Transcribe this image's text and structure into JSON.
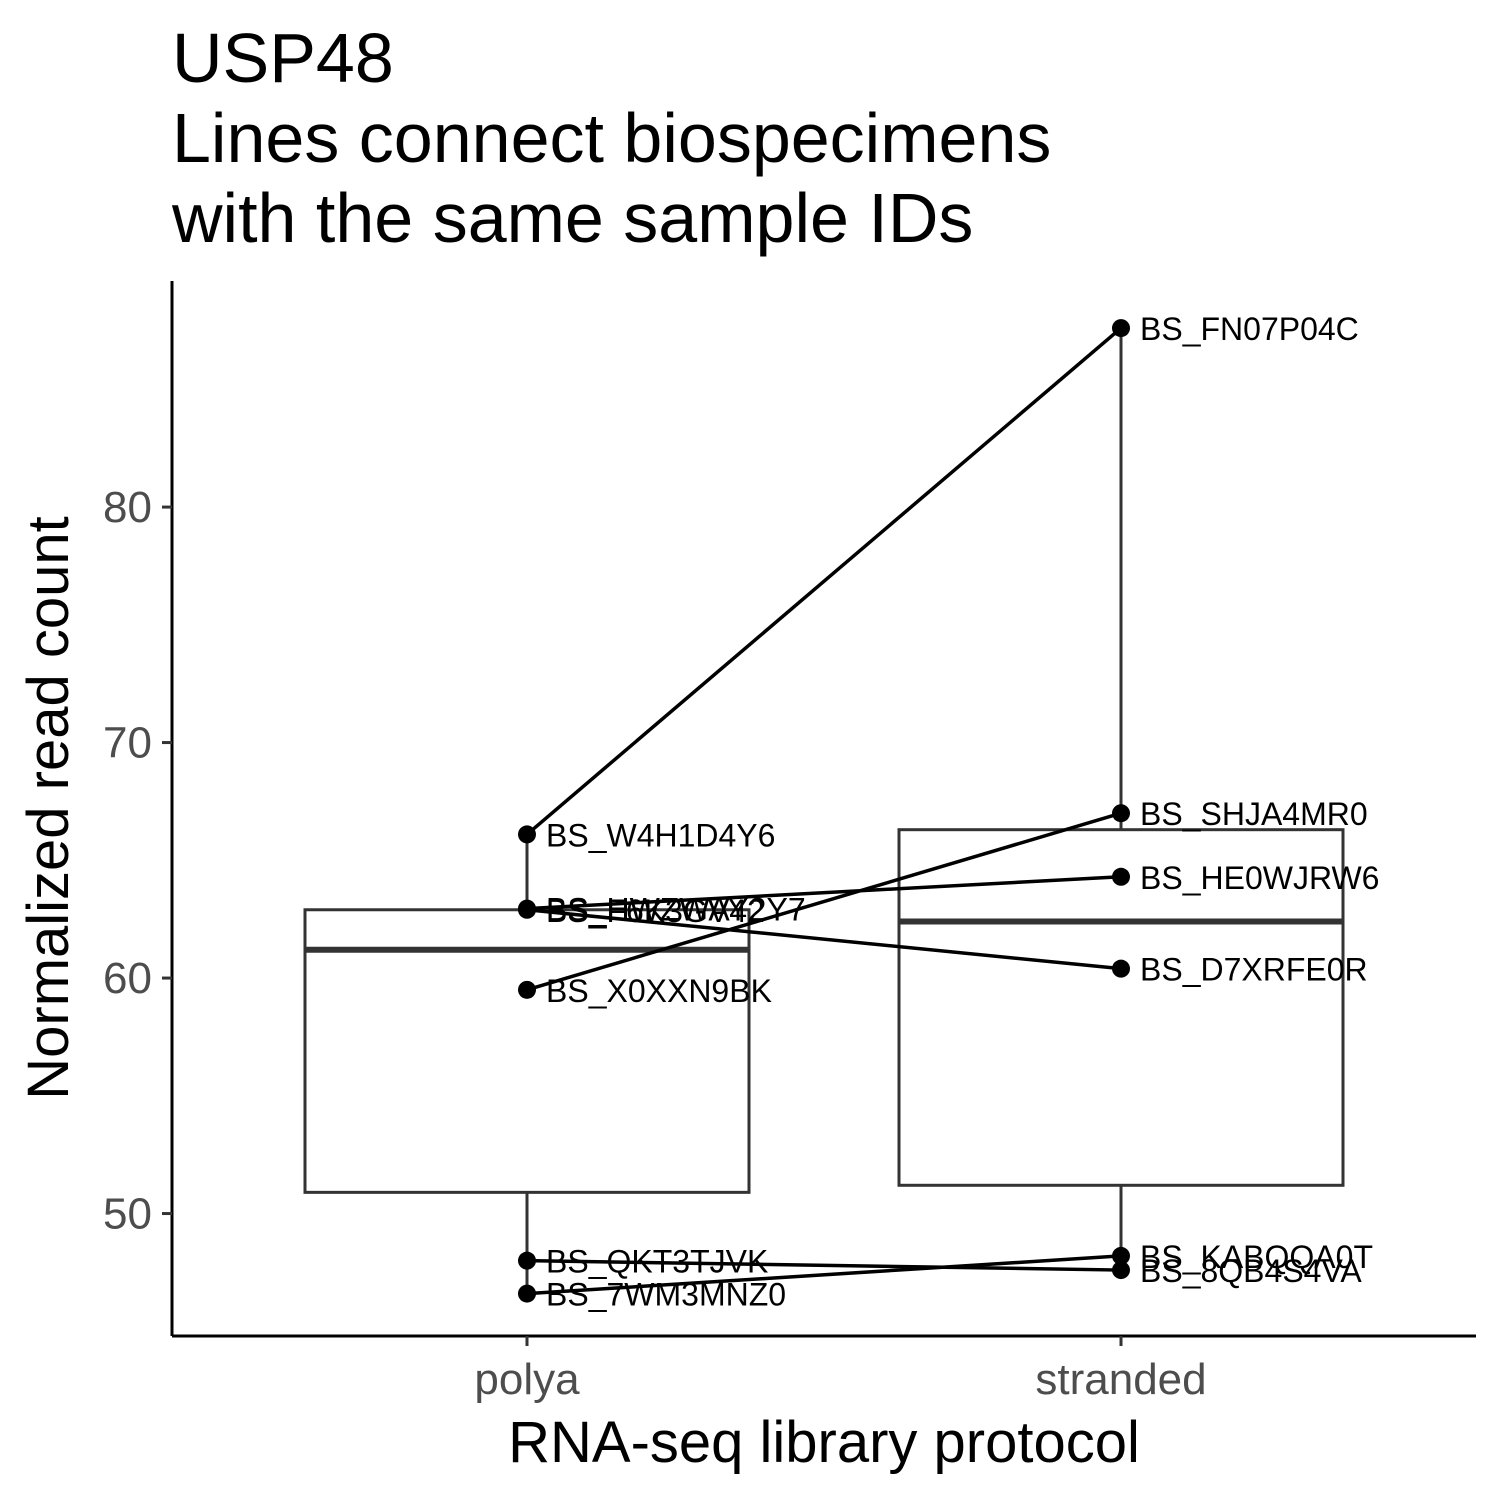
{
  "chart_data": {
    "type": "boxplot",
    "title_lines": [
      "USP48",
      "Lines connect biospecimens",
      "with the same sample IDs"
    ],
    "xlabel": "RNA-seq library protocol",
    "ylabel": "Normalized read count",
    "categories": [
      "polya",
      "stranded"
    ],
    "yticks": [
      50,
      60,
      70,
      80
    ],
    "ylim": [
      44.8,
      89.6
    ],
    "grid": false,
    "legend": "none",
    "boxes": [
      {
        "category": "polya",
        "whisker_low": 46.6,
        "q1": 50.9,
        "median": 61.2,
        "q3": 62.9,
        "whisker_high": 66.1
      },
      {
        "category": "stranded",
        "whisker_low": 47.6,
        "q1": 51.2,
        "median": 62.4,
        "q3": 66.3,
        "whisker_high": 87.6
      }
    ],
    "points": [
      {
        "id": "BS_W4H1D4Y6",
        "category": "polya",
        "value": 66.1
      },
      {
        "id": "BS_HWZWAY2Y7",
        "category": "polya",
        "value": 62.95
      },
      {
        "id": "BS_F6K3GV42",
        "category": "polya",
        "value": 62.9
      },
      {
        "id": "BS_X0XXN9BK",
        "category": "polya",
        "value": 59.5
      },
      {
        "id": "BS_QKT3TJVK",
        "category": "polya",
        "value": 48.0
      },
      {
        "id": "BS_7WM3MNZ0",
        "category": "polya",
        "value": 46.6
      },
      {
        "id": "BS_FN07P04C",
        "category": "stranded",
        "value": 87.6
      },
      {
        "id": "BS_SHJA4MR0",
        "category": "stranded",
        "value": 67.0
      },
      {
        "id": "BS_HE0WJRW6",
        "category": "stranded",
        "value": 64.3
      },
      {
        "id": "BS_D7XRFE0R",
        "category": "stranded",
        "value": 60.4
      },
      {
        "id": "BS_KABQQA0T",
        "category": "stranded",
        "value": 48.2
      },
      {
        "id": "BS_8QB4S4VA",
        "category": "stranded",
        "value": 47.6
      }
    ],
    "connections": [
      {
        "from": "BS_W4H1D4Y6",
        "to": "BS_FN07P04C"
      },
      {
        "from": "BS_X0XXN9BK",
        "to": "BS_SHJA4MR0"
      },
      {
        "from": "BS_HWZWAY2Y7",
        "to": "BS_HE0WJRW6"
      },
      {
        "from": "BS_F6K3GV42",
        "to": "BS_D7XRFE0R"
      },
      {
        "from": "BS_7WM3MNZ0",
        "to": "BS_KABQQA0T"
      },
      {
        "from": "BS_QKT3TJVK",
        "to": "BS_8QB4S4VA"
      }
    ],
    "colors": {
      "box": "#333333",
      "point": "#000000",
      "line": "#000000",
      "axis": "#000000"
    }
  }
}
